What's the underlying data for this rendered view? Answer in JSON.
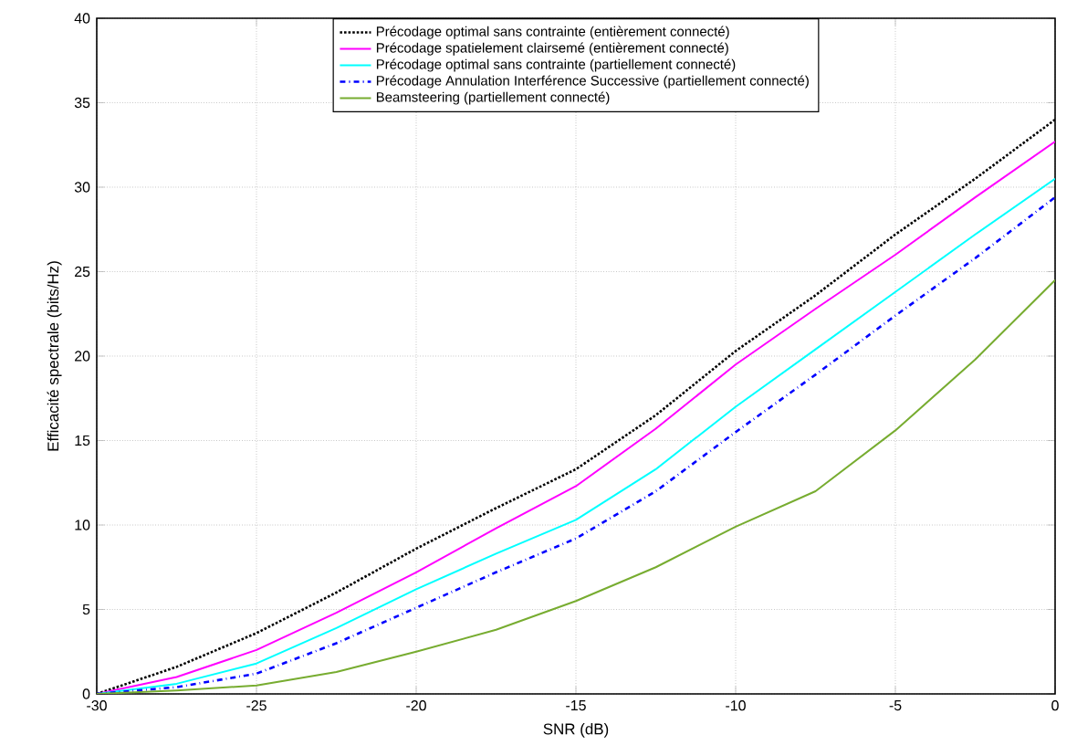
{
  "chart_data": {
    "type": "line",
    "xlabel": "SNR (dB)",
    "ylabel": "Efficacité spectrale (bits/Hz)",
    "x": [
      -30,
      -27.5,
      -25,
      -22.5,
      -20,
      -17.5,
      -15,
      -12.5,
      -10,
      -7.5,
      -5,
      -2.5,
      0
    ],
    "series": [
      {
        "name": "Précodage optimal sans contrainte (entièrement connecté)",
        "color": "#000000",
        "line_style": "dotted",
        "values": [
          0,
          1.6,
          3.6,
          6.0,
          8.6,
          11.0,
          13.3,
          16.5,
          20.3,
          23.6,
          27.2,
          30.5,
          34.0
        ]
      },
      {
        "name": "Précodage spatielement clairsemé (entièrement connecté)",
        "color": "#ff00ff",
        "line_style": "solid",
        "values": [
          0,
          1.0,
          2.6,
          4.8,
          7.2,
          9.8,
          12.3,
          15.7,
          19.5,
          22.8,
          26.0,
          29.4,
          32.7
        ]
      },
      {
        "name": "Précodage optimal sans contrainte (partiellement connecté)",
        "color": "#00ffff",
        "line_style": "solid",
        "values": [
          0,
          0.6,
          1.8,
          3.9,
          6.2,
          8.3,
          10.3,
          13.3,
          17.0,
          20.4,
          23.8,
          27.2,
          30.5
        ]
      },
      {
        "name": "Précodage Annulation Interférence Successive (partiellement connecté)",
        "color": "#0000ff",
        "line_style": "dashdot",
        "values": [
          0,
          0.4,
          1.2,
          3.0,
          5.1,
          7.2,
          9.2,
          12.0,
          15.5,
          18.9,
          22.4,
          25.8,
          29.4
        ]
      },
      {
        "name": "Beamsteering (partiellement connecté)",
        "color": "#77ac30",
        "line_style": "solid",
        "values": [
          0,
          0.2,
          0.5,
          1.3,
          2.5,
          3.8,
          5.5,
          7.5,
          9.9,
          12.0,
          15.6,
          19.8,
          24.5
        ]
      }
    ],
    "xlim": [
      -30,
      0
    ],
    "ylim": [
      0,
      40
    ],
    "xticks": [
      -30,
      -25,
      -20,
      -15,
      -10,
      -5,
      0
    ],
    "yticks": [
      0,
      5,
      10,
      15,
      20,
      25,
      30,
      35,
      40
    ],
    "grid": true,
    "legend": "top",
    "marker": "none"
  }
}
